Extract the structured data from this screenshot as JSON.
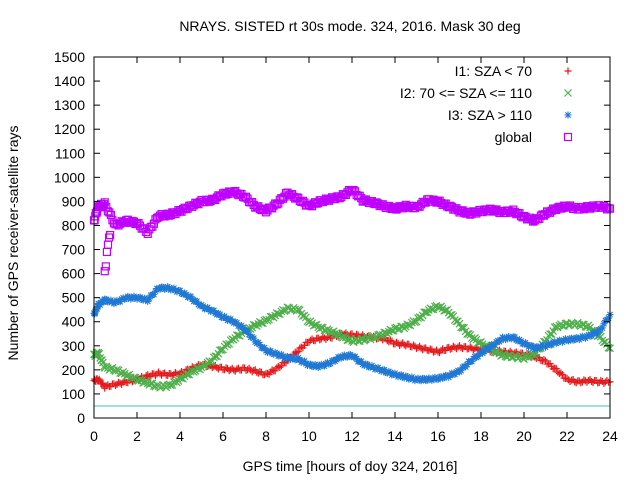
{
  "chart_data": {
    "type": "scatter",
    "title": "NRAYS. SISTED rt 30s mode. 324, 2016. Mask 30 deg",
    "xlabel": "GPS time [hours of doy 324, 2016]",
    "ylabel": "Number of GPS receiver-satellite rays",
    "xlim": [
      0,
      24
    ],
    "ylim": [
      0,
      1500
    ],
    "xticks": [
      0,
      2,
      4,
      6,
      8,
      10,
      12,
      14,
      16,
      18,
      20,
      22,
      24
    ],
    "yticks": [
      0,
      100,
      200,
      300,
      400,
      500,
      600,
      700,
      800,
      900,
      1000,
      1100,
      1200,
      1300,
      1400,
      1500
    ],
    "reference_line": {
      "y": 50,
      "color": "#40c0c0"
    },
    "legend_position": "top-right",
    "series": [
      {
        "name": "I1: SZA < 70",
        "color": "#e41a1c",
        "marker": "+",
        "x": [
          0.0,
          0.2,
          0.5,
          1.0,
          1.5,
          2.0,
          2.5,
          3.0,
          3.5,
          4.0,
          4.5,
          5.0,
          5.5,
          6.0,
          6.5,
          7.0,
          7.5,
          8.0,
          8.5,
          9.0,
          9.5,
          10.0,
          10.5,
          11.0,
          11.5,
          12.0,
          12.5,
          13.0,
          13.5,
          14.0,
          14.5,
          15.0,
          15.5,
          16.0,
          16.5,
          17.0,
          17.5,
          18.0,
          18.5,
          19.0,
          19.5,
          20.0,
          20.5,
          21.0,
          21.5,
          22.0,
          22.5,
          23.0,
          23.5,
          24.0
        ],
        "y": [
          155,
          160,
          130,
          140,
          150,
          160,
          175,
          185,
          180,
          185,
          205,
          220,
          215,
          205,
          200,
          205,
          195,
          180,
          205,
          240,
          280,
          320,
          330,
          335,
          350,
          345,
          340,
          335,
          330,
          310,
          305,
          295,
          285,
          275,
          290,
          295,
          290,
          285,
          280,
          275,
          270,
          265,
          255,
          235,
          200,
          160,
          150,
          155,
          150,
          150
        ]
      },
      {
        "name": "I2: 70 <= SZA <= 110",
        "color": "#4daf4a",
        "marker": "x",
        "x": [
          0.0,
          0.2,
          0.5,
          1.0,
          1.5,
          2.0,
          2.5,
          3.0,
          3.5,
          4.0,
          4.5,
          5.0,
          5.5,
          6.0,
          6.5,
          7.0,
          7.5,
          8.0,
          8.5,
          9.0,
          9.5,
          10.0,
          10.5,
          11.0,
          11.5,
          12.0,
          12.5,
          13.0,
          13.5,
          14.0,
          14.5,
          15.0,
          15.5,
          16.0,
          16.5,
          17.0,
          17.5,
          18.0,
          18.5,
          19.0,
          19.5,
          20.0,
          20.5,
          21.0,
          21.5,
          22.0,
          22.5,
          23.0,
          23.5,
          24.0
        ],
        "y": [
          260,
          270,
          210,
          200,
          180,
          160,
          145,
          130,
          135,
          160,
          190,
          210,
          240,
          290,
          330,
          360,
          385,
          405,
          430,
          455,
          450,
          400,
          375,
          360,
          340,
          320,
          325,
          335,
          350,
          370,
          380,
          405,
          445,
          465,
          440,
          390,
          340,
          310,
          285,
          260,
          255,
          250,
          265,
          320,
          380,
          390,
          390,
          380,
          340,
          290
        ]
      },
      {
        "name": "I3: SZA > 110",
        "color": "#1f78d4",
        "marker": "*",
        "x": [
          0.0,
          0.2,
          0.5,
          1.0,
          1.5,
          2.0,
          2.5,
          3.0,
          3.5,
          4.0,
          4.5,
          5.0,
          5.5,
          6.0,
          6.5,
          7.0,
          7.5,
          8.0,
          8.5,
          9.0,
          9.5,
          10.0,
          10.5,
          11.0,
          11.5,
          12.0,
          12.5,
          13.0,
          13.5,
          14.0,
          14.5,
          15.0,
          15.5,
          16.0,
          16.5,
          17.0,
          17.5,
          18.0,
          18.5,
          19.0,
          19.5,
          20.0,
          20.5,
          21.0,
          21.5,
          22.0,
          22.5,
          23.0,
          23.5,
          24.0
        ],
        "y": [
          430,
          470,
          490,
          480,
          500,
          500,
          490,
          540,
          540,
          525,
          500,
          465,
          445,
          420,
          400,
          370,
          320,
          280,
          265,
          250,
          245,
          220,
          215,
          230,
          255,
          260,
          225,
          210,
          195,
          180,
          170,
          160,
          160,
          165,
          175,
          195,
          235,
          270,
          300,
          330,
          335,
          310,
          290,
          300,
          315,
          325,
          330,
          340,
          360,
          430
        ]
      },
      {
        "name": "global",
        "color": "#c000ff",
        "marker": "square",
        "x": [
          0.0,
          0.2,
          0.5,
          1.0,
          1.5,
          2.0,
          2.5,
          3.0,
          3.5,
          4.0,
          4.5,
          5.0,
          5.5,
          6.0,
          6.5,
          7.0,
          7.5,
          8.0,
          8.5,
          9.0,
          9.5,
          10.0,
          10.5,
          11.0,
          11.5,
          12.0,
          12.5,
          13.0,
          13.5,
          14.0,
          14.5,
          15.0,
          15.5,
          16.0,
          16.5,
          17.0,
          17.5,
          18.0,
          18.5,
          19.0,
          19.5,
          20.0,
          20.5,
          21.0,
          21.5,
          22.0,
          22.5,
          23.0,
          23.5,
          24.0
        ],
        "y": [
          820,
          880,
          890,
          800,
          820,
          810,
          770,
          840,
          845,
          860,
          880,
          900,
          905,
          930,
          940,
          920,
          880,
          860,
          890,
          935,
          910,
          880,
          900,
          910,
          920,
          950,
          905,
          895,
          880,
          870,
          880,
          875,
          905,
          900,
          880,
          860,
          850,
          860,
          865,
          855,
          860,
          835,
          820,
          850,
          870,
          880,
          870,
          875,
          880,
          870
        ]
      }
    ],
    "extra_points": {
      "series": "global",
      "x": [
        0.5,
        0.55,
        0.6,
        0.65,
        0.7,
        0.75
      ],
      "y": [
        610,
        630,
        690,
        720,
        750,
        760
      ]
    }
  }
}
